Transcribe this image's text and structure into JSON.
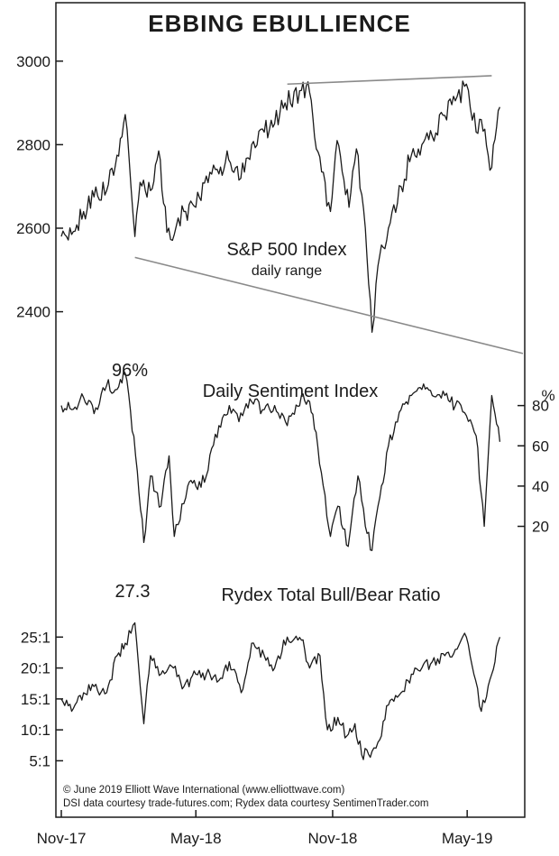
{
  "title": "EBBING EBULLIENCE",
  "x_axis": {
    "tick_labels": [
      "Nov-17",
      "May-18",
      "Nov-18",
      "May-19"
    ]
  },
  "credits": [
    "© June 2019 Elliott Wave International (www.elliottwave.com)",
    "DSI data courtesy trade-futures.com; Rydex data courtesy SentimenTrader.com"
  ],
  "colors": {
    "line": "#1a1a1a",
    "trendline": "#8a8a8a",
    "frame": "#1a1a1a",
    "background": "#ffffff"
  },
  "chart_data": [
    {
      "type": "line",
      "name": "spx",
      "title": "S&P 500 Index",
      "subtitle": "daily range",
      "ylim": [
        2330,
        3060
      ],
      "y_ticks": [
        2400,
        2600,
        2800,
        3000
      ],
      "y_tick_labels": [
        "2400",
        "2600",
        "2800",
        "3000"
      ],
      "y_axis_side": "left",
      "x": [
        "2017-11-01",
        "2017-11-15",
        "2017-12-01",
        "2017-12-15",
        "2018-01-01",
        "2018-01-15",
        "2018-01-26",
        "2018-02-08",
        "2018-02-15",
        "2018-03-01",
        "2018-03-12",
        "2018-03-23",
        "2018-04-02",
        "2018-04-15",
        "2018-05-01",
        "2018-05-15",
        "2018-06-01",
        "2018-06-12",
        "2018-06-28",
        "2018-07-15",
        "2018-08-01",
        "2018-08-15",
        "2018-08-29",
        "2018-09-20",
        "2018-10-01",
        "2018-10-10",
        "2018-10-29",
        "2018-11-07",
        "2018-11-23",
        "2018-12-03",
        "2018-12-15",
        "2018-12-24",
        "2019-01-01",
        "2019-01-15",
        "2019-02-01",
        "2019-02-15",
        "2019-03-01",
        "2019-03-15",
        "2019-04-01",
        "2019-04-15",
        "2019-04-30",
        "2019-05-13",
        "2019-05-20",
        "2019-06-03",
        "2019-06-14"
      ],
      "values": [
        2580,
        2585,
        2640,
        2675,
        2690,
        2775,
        2872,
        2580,
        2710,
        2690,
        2785,
        2590,
        2585,
        2640,
        2650,
        2725,
        2730,
        2785,
        2715,
        2800,
        2830,
        2850,
        2900,
        2930,
        2925,
        2790,
        2640,
        2810,
        2650,
        2790,
        2600,
        2351,
        2510,
        2600,
        2700,
        2775,
        2800,
        2820,
        2870,
        2905,
        2945,
        2830,
        2860,
        2745,
        2890
      ],
      "trendlines": [
        {
          "label": "upper",
          "points": [
            [
              "2018-09-01",
              2945
            ],
            [
              "2019-06-03",
              2965
            ]
          ]
        },
        {
          "label": "lower",
          "points": [
            [
              "2018-02-08",
              2530
            ],
            [
              "2019-07-15",
              2300
            ]
          ]
        }
      ]
    },
    {
      "type": "line",
      "name": "dsi",
      "title": "Daily Sentiment Index",
      "unit": "%",
      "annotation": "96%",
      "ylim": [
        5,
        100
      ],
      "y_ticks": [
        20,
        40,
        60,
        80
      ],
      "y_tick_labels": [
        "20",
        "40",
        "60",
        "80"
      ],
      "y_axis_side": "right",
      "x": [
        "2017-11-01",
        "2017-11-15",
        "2017-12-01",
        "2017-12-15",
        "2018-01-01",
        "2018-01-15",
        "2018-01-26",
        "2018-02-09",
        "2018-02-20",
        "2018-03-01",
        "2018-03-15",
        "2018-03-26",
        "2018-04-02",
        "2018-04-20",
        "2018-05-01",
        "2018-05-15",
        "2018-06-01",
        "2018-06-15",
        "2018-06-28",
        "2018-07-15",
        "2018-08-01",
        "2018-08-15",
        "2018-09-01",
        "2018-09-20",
        "2018-10-01",
        "2018-10-12",
        "2018-10-29",
        "2018-11-08",
        "2018-11-22",
        "2018-12-05",
        "2018-12-15",
        "2018-12-24",
        "2019-01-01",
        "2019-01-15",
        "2019-02-01",
        "2019-02-15",
        "2019-03-01",
        "2019-03-15",
        "2019-04-01",
        "2019-04-15",
        "2019-04-30",
        "2019-05-13",
        "2019-05-24",
        "2019-06-03",
        "2019-06-14"
      ],
      "values": [
        80,
        78,
        84,
        76,
        90,
        88,
        96,
        55,
        12,
        45,
        30,
        55,
        15,
        40,
        40,
        45,
        70,
        80,
        72,
        82,
        78,
        80,
        70,
        85,
        82,
        60,
        15,
        30,
        10,
        45,
        20,
        8,
        30,
        60,
        78,
        85,
        88,
        85,
        85,
        80,
        75,
        65,
        20,
        85,
        62
      ]
    },
    {
      "type": "line",
      "name": "rydex",
      "title": "Rydex Total Bull/Bear Ratio",
      "annotation": "27.3",
      "ylim": [
        2,
        30
      ],
      "y_ticks": [
        5,
        10,
        15,
        20,
        25
      ],
      "y_tick_labels": [
        "5:1",
        "10:1",
        "15:1",
        "20:1",
        "25:1"
      ],
      "y_axis_side": "left",
      "x": [
        "2017-11-01",
        "2017-11-15",
        "2017-12-01",
        "2017-12-15",
        "2018-01-01",
        "2018-01-15",
        "2018-01-26",
        "2018-02-08",
        "2018-02-20",
        "2018-03-01",
        "2018-03-15",
        "2018-04-01",
        "2018-04-15",
        "2018-05-01",
        "2018-05-15",
        "2018-06-01",
        "2018-06-15",
        "2018-07-01",
        "2018-07-15",
        "2018-08-01",
        "2018-08-15",
        "2018-09-01",
        "2018-09-20",
        "2018-10-01",
        "2018-10-15",
        "2018-10-25",
        "2018-11-08",
        "2018-11-20",
        "2018-12-01",
        "2018-12-10",
        "2018-12-24",
        "2019-01-01",
        "2019-01-15",
        "2019-02-01",
        "2019-02-15",
        "2019-03-01",
        "2019-03-15",
        "2019-04-01",
        "2019-04-15",
        "2019-04-30",
        "2019-05-10",
        "2019-05-20",
        "2019-06-03",
        "2019-06-14"
      ],
      "values": [
        15,
        13,
        16,
        17,
        16,
        22,
        24,
        27.3,
        11,
        22,
        19,
        20,
        17,
        19,
        19,
        18,
        21,
        16,
        24,
        22,
        20,
        25,
        24.5,
        20,
        22,
        10,
        12,
        9,
        11,
        6,
        6.5,
        8,
        14,
        16,
        19,
        20,
        21,
        22,
        23,
        25,
        19,
        13,
        19,
        25
      ]
    }
  ]
}
